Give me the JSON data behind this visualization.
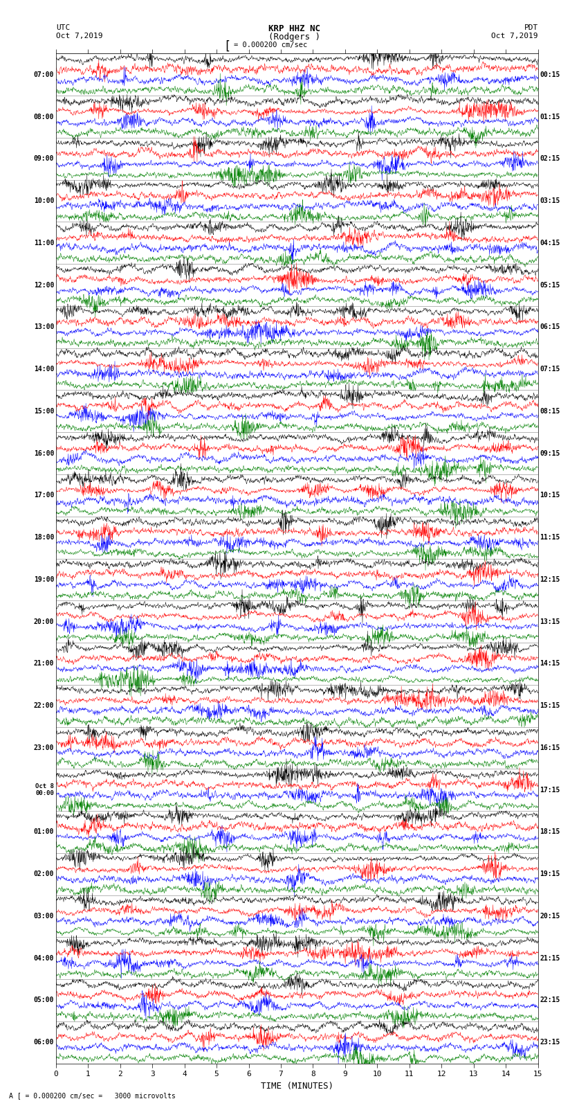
{
  "title_line1": "KRP HHZ NC",
  "title_line2": "(Rodgers )",
  "scale_label": "= 0.000200 cm/sec",
  "footer_label": "A [ = 0.000200 cm/sec =   3000 microvolts",
  "left_header_line1": "UTC",
  "left_header_line2": "Oct 7,2019",
  "right_header_line1": "PDT",
  "right_header_line2": "Oct 7,2019",
  "xlabel": "TIME (MINUTES)",
  "left_times": [
    "07:00",
    "08:00",
    "09:00",
    "10:00",
    "11:00",
    "12:00",
    "13:00",
    "14:00",
    "15:00",
    "16:00",
    "17:00",
    "18:00",
    "19:00",
    "20:00",
    "21:00",
    "22:00",
    "23:00",
    "Oct 8",
    "01:00",
    "02:00",
    "03:00",
    "04:00",
    "05:00",
    "06:00"
  ],
  "left_times2": [
    "",
    "",
    "",
    "",
    "",
    "",
    "",
    "",
    "",
    "",
    "",
    "",
    "",
    "",
    "",
    "",
    "",
    "00:00",
    "",
    "",
    "",
    "",
    "",
    ""
  ],
  "right_times": [
    "00:15",
    "01:15",
    "02:15",
    "03:15",
    "04:15",
    "05:15",
    "06:15",
    "07:15",
    "08:15",
    "09:15",
    "10:15",
    "11:15",
    "12:15",
    "13:15",
    "14:15",
    "15:15",
    "16:15",
    "17:15",
    "18:15",
    "19:15",
    "20:15",
    "21:15",
    "22:15",
    "23:15"
  ],
  "n_rows": 24,
  "n_traces_per_row": 4,
  "colors": [
    "black",
    "red",
    "blue",
    "green"
  ],
  "fig_width": 8.5,
  "fig_height": 16.13,
  "x_ticks": [
    0,
    1,
    2,
    3,
    4,
    5,
    6,
    7,
    8,
    9,
    10,
    11,
    12,
    13,
    14,
    15
  ],
  "x_lim": [
    0,
    15
  ],
  "background_color": "white"
}
